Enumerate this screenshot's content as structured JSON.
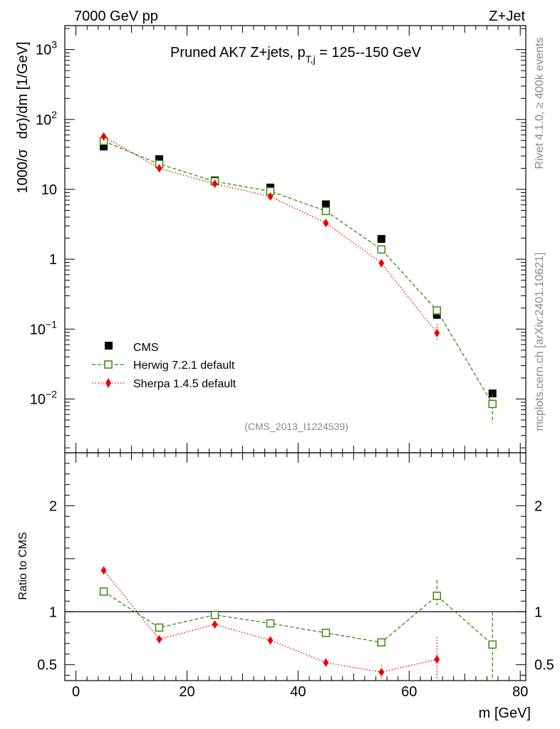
{
  "header": {
    "left": "7000 GeV pp",
    "right": "Z+Jet"
  },
  "side_texts": {
    "rivet": "Rivet 4.1.0, ≥ 400k events",
    "mcplots": "mcplots.cern.ch [arXiv:2401.10621]"
  },
  "chart_data": [
    {
      "type": "line",
      "panel": "main",
      "title": "Pruned AK7 Z+jets, p_T,j = 125--150 GeV",
      "title_parts": {
        "main": "Pruned AK7 Z+jets, p",
        "sub": "T,j",
        "tail": " = 125--150 GeV"
      },
      "analysis_label": "(CMS_2013_I1224539)",
      "ylabel": "1000/σ  dσ/dm [1/GeV]",
      "ylabel_parts": {
        "a": "1000/σ",
        "b": "dσ)/dm [1/GeV]"
      },
      "yscale": "log",
      "ylim": [
        0.0017,
        2200
      ],
      "xlim": [
        -2,
        81
      ],
      "y_major_ticks": [
        {
          "value": 0.01,
          "base": "10",
          "exp": "−2"
        },
        {
          "value": 0.1,
          "base": "10",
          "exp": "−1"
        },
        {
          "value": 1,
          "label": "1"
        },
        {
          "value": 10,
          "label": "10"
        },
        {
          "value": 100,
          "base": "10",
          "exp": "2"
        },
        {
          "value": 1000,
          "base": "10",
          "exp": "3"
        }
      ],
      "legend_position": "lower-left",
      "series": [
        {
          "name": "CMS",
          "style": "square-filled",
          "color": "#000000",
          "x": [
            5,
            15,
            25,
            35,
            45,
            55,
            65,
            75
          ],
          "y": [
            41,
            27,
            13.4,
            10.6,
            6.1,
            1.95,
            0.16,
            0.012
          ]
        },
        {
          "name": "Herwig 7.2.1 default",
          "style": "square-open-dashed",
          "color": "#3a8a10",
          "x": [
            5,
            15,
            25,
            35,
            45,
            55,
            65,
            75
          ],
          "y": [
            49,
            23,
            13,
            9.4,
            4.9,
            1.38,
            0.185,
            0.0085
          ],
          "err_hi": [
            null,
            null,
            null,
            null,
            null,
            null,
            null,
            0.0118
          ],
          "err_lo": [
            null,
            null,
            null,
            null,
            null,
            null,
            null,
            0.0045
          ]
        },
        {
          "name": "Sherpa 1.4.5 default",
          "style": "diamond-filled-dotted",
          "color": "#ee0000",
          "x": [
            5,
            15,
            25,
            35,
            45,
            55,
            65
          ],
          "y": [
            57,
            20,
            12,
            7.9,
            3.3,
            0.88,
            0.088
          ],
          "err_hi": [
            null,
            null,
            null,
            null,
            null,
            null,
            0.118
          ],
          "err_lo": [
            null,
            null,
            null,
            null,
            null,
            null,
            0.068
          ]
        }
      ]
    },
    {
      "type": "line",
      "panel": "ratio",
      "ylabel": "Ratio to CMS",
      "xlabel": "m [GeV]",
      "ylim": [
        0.35,
        2.5
      ],
      "xlim": [
        -2,
        81
      ],
      "x_ticks": [
        0,
        20,
        40,
        60,
        80
      ],
      "y_ticks": [
        0.5,
        1,
        2
      ],
      "reference_line": 1,
      "series": [
        {
          "name": "Herwig 7.2.1 default",
          "style": "square-open-dashed",
          "color": "#3a8a10",
          "x": [
            5,
            15,
            25,
            35,
            45,
            55,
            65,
            75
          ],
          "y": [
            1.19,
            0.85,
            0.97,
            0.89,
            0.8,
            0.71,
            1.15,
            0.69
          ],
          "err_hi": [
            null,
            null,
            null,
            null,
            null,
            null,
            1.3,
            1.0
          ],
          "err_lo": [
            null,
            null,
            null,
            null,
            null,
            null,
            1.06,
            0.35
          ]
        },
        {
          "name": "Sherpa 1.4.5 default",
          "style": "diamond-filled-dotted",
          "color": "#ee0000",
          "x": [
            5,
            15,
            25,
            35,
            45,
            55,
            65
          ],
          "y": [
            1.39,
            0.74,
            0.88,
            0.73,
            0.52,
            0.43,
            0.55
          ],
          "err_hi": [
            null,
            null,
            null,
            null,
            0.55,
            0.49,
            0.76
          ],
          "err_lo": [
            null,
            null,
            null,
            null,
            0.49,
            0.37,
            0.35
          ]
        }
      ]
    }
  ]
}
